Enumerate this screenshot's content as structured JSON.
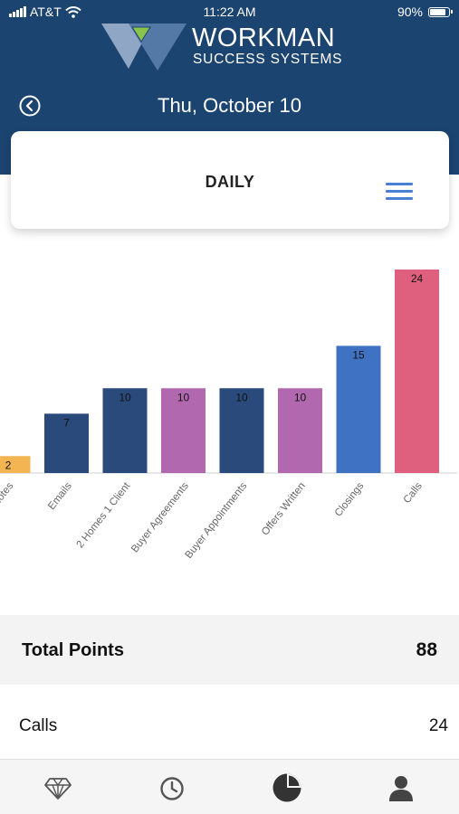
{
  "status_bar": {
    "carrier": "AT&T",
    "time": "11:22 AM",
    "battery": "90%",
    "battery_level": 0.9
  },
  "header": {
    "logo_name": "WORKMAN",
    "logo_subtitle": "SUCCESS SYSTEMS",
    "date": "Thu, October 10",
    "back_icon": "chevron-left-circle-icon"
  },
  "card": {
    "title": "DAILY",
    "menu_icon": "hamburger-menu-icon"
  },
  "chart_data": {
    "type": "bar",
    "categories": [
      "Notes",
      "Emails",
      "2 Homes 1 Client",
      "Buyer Agreements",
      "Buyer Appointments",
      "Offers Written",
      "Closings",
      "Calls"
    ],
    "tick_labels": [
      "Notes",
      "Emails",
      "2 Homes 1 Client",
      "Buyer Agreements",
      "Buyer Appointments",
      "Offers Written",
      "Closings",
      "Calls"
    ],
    "values": [
      2,
      7,
      10,
      10,
      10,
      10,
      15,
      24
    ],
    "colors": [
      "#f2b552",
      "#2b4a7c",
      "#2b4a7c",
      "#b268ae",
      "#2b4a7c",
      "#b268ae",
      "#3f72c3",
      "#de5f7e"
    ],
    "ylim": [
      0,
      24
    ],
    "grid": false,
    "legend": "none",
    "title": "",
    "xlabel": "",
    "ylabel": ""
  },
  "summary": {
    "total_label": "Total Points",
    "total_value": "88",
    "rows": [
      {
        "label": "Calls",
        "value": "24"
      }
    ]
  },
  "tab_bar": {
    "tabs": [
      {
        "icon": "diamond-icon"
      },
      {
        "icon": "clock-icon"
      },
      {
        "icon": "pie-chart-icon",
        "active": true
      },
      {
        "icon": "person-icon"
      }
    ]
  }
}
